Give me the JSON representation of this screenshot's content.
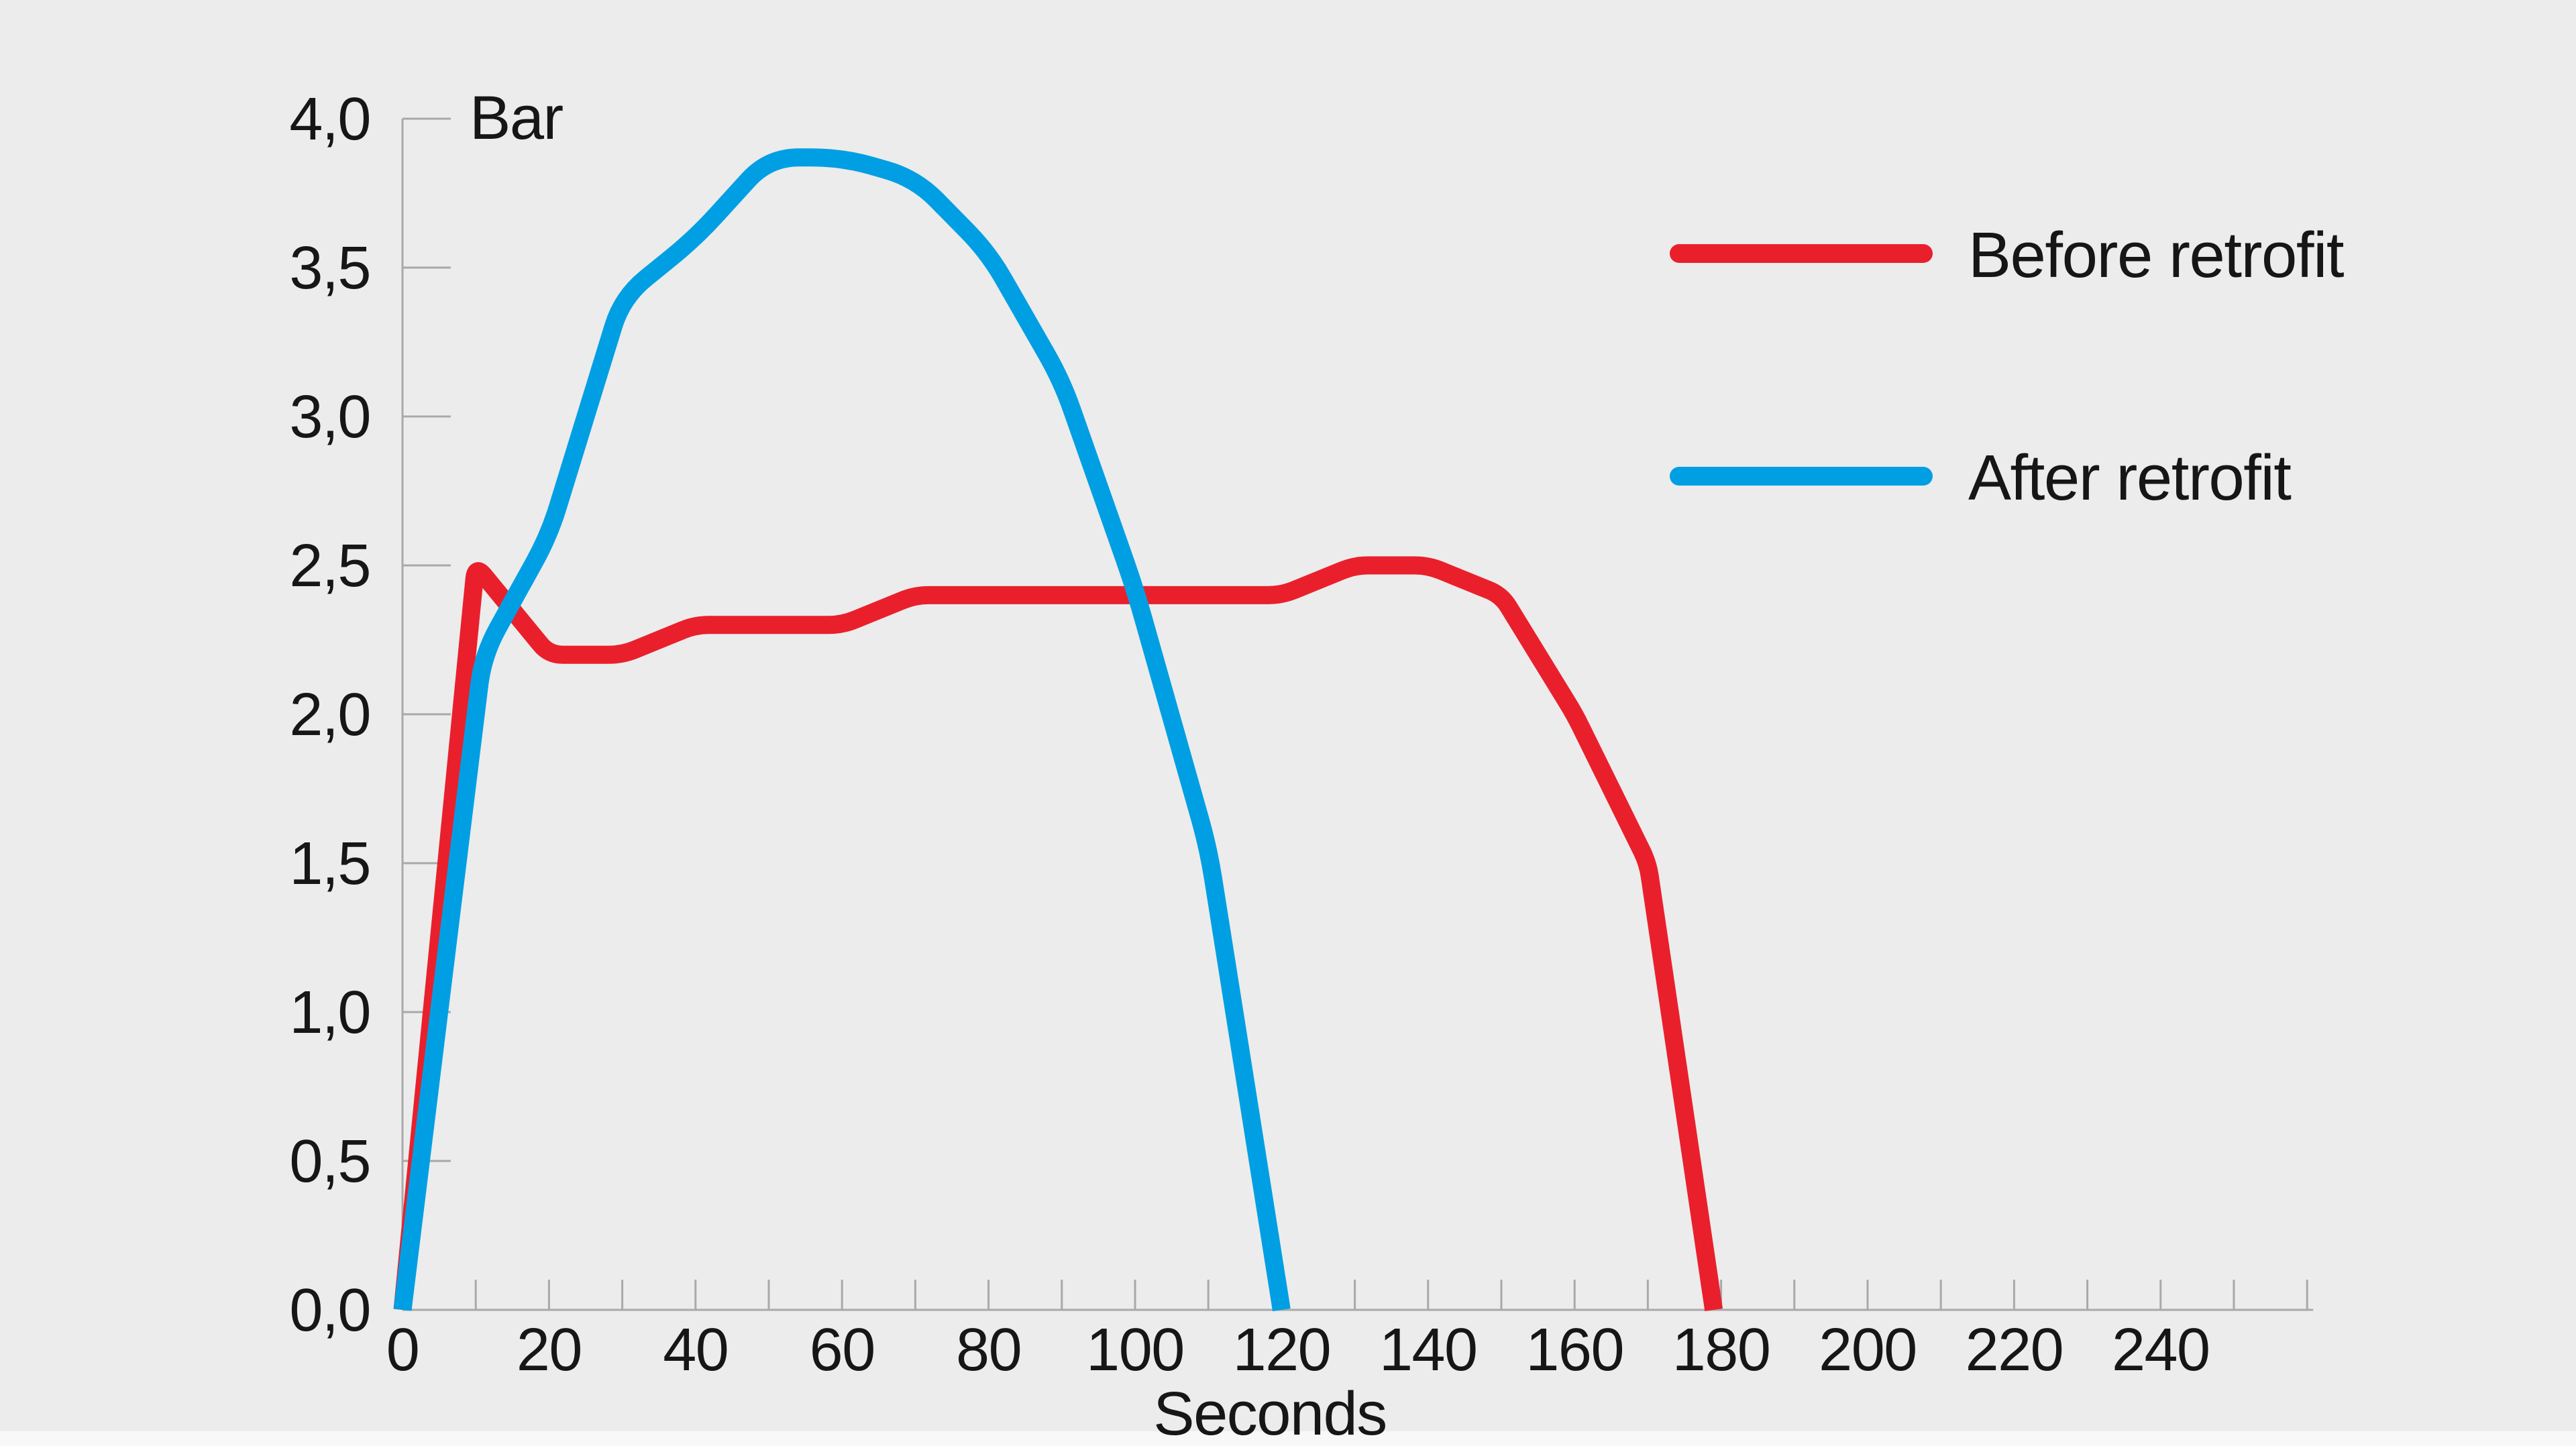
{
  "chart_data": {
    "type": "line",
    "title": "",
    "ylabel": "Bar",
    "xlabel": "Seconds",
    "xlim": [
      0,
      262
    ],
    "ylim": [
      0,
      4
    ],
    "grid": false,
    "legend_position": "top-right",
    "x_tick_step_minor": 10,
    "x_tick_max": 260,
    "x_tick_label_step": 20,
    "x_tick_labels": [
      "0",
      "20",
      "40",
      "60",
      "80",
      "100",
      "120",
      "140",
      "160",
      "180",
      "200",
      "220",
      "240"
    ],
    "x_tick_label_values": [
      0,
      20,
      40,
      60,
      80,
      100,
      120,
      140,
      160,
      180,
      200,
      220,
      240
    ],
    "y_tick_labels": [
      "0,0",
      "0,5",
      "1,0",
      "1,5",
      "2,0",
      "2,5",
      "3,0",
      "3,5",
      "4,0"
    ],
    "y_tick_values": [
      0,
      0.5,
      1,
      1.5,
      2,
      2.5,
      3,
      3.5,
      4
    ],
    "series": [
      {
        "name": "Before retrofit",
        "color": "#e9202c",
        "points": [
          [
            0,
            0
          ],
          [
            10,
            2.5
          ],
          [
            20,
            2.2
          ],
          [
            30,
            2.2
          ],
          [
            40,
            2.3
          ],
          [
            60,
            2.3
          ],
          [
            70,
            2.4
          ],
          [
            120,
            2.4
          ],
          [
            130,
            2.5
          ],
          [
            140,
            2.5
          ],
          [
            150,
            2.4
          ],
          [
            160,
            2.0
          ],
          [
            170,
            1.5
          ],
          [
            179,
            0
          ]
        ]
      },
      {
        "name": "After retrofit",
        "color": "#009fe3",
        "points": [
          [
            0,
            0
          ],
          [
            11,
            2.2
          ],
          [
            20,
            2.6
          ],
          [
            30,
            3.4
          ],
          [
            40,
            3.6
          ],
          [
            50,
            3.87
          ],
          [
            60,
            3.87
          ],
          [
            70,
            3.8
          ],
          [
            80,
            3.55
          ],
          [
            90,
            3.12
          ],
          [
            100,
            2.42
          ],
          [
            110,
            1.55
          ],
          [
            120,
            0
          ]
        ]
      }
    ]
  },
  "legend": {
    "items": [
      {
        "label": "Before retrofit",
        "color": "#e9202c"
      },
      {
        "label": "After retrofit",
        "color": "#009fe3"
      }
    ]
  },
  "colors": {
    "background": "#ececec",
    "bottom_strip": "#f8f8f8",
    "axis": "#a9a9a9",
    "text": "#161616",
    "before_retrofit": "#e9202c",
    "after_retrofit": "#009fe3"
  }
}
